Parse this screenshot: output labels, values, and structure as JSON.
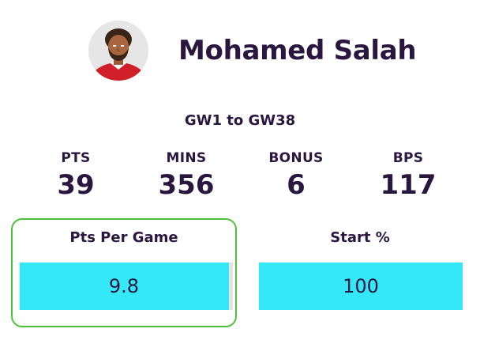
{
  "player": {
    "name": "Mohamed Salah",
    "avatar_icon": "player-avatar"
  },
  "range": "GW1 to GW38",
  "stats": [
    {
      "label": "PTS",
      "value": "39"
    },
    {
      "label": "MINS",
      "value": "356"
    },
    {
      "label": "BONUS",
      "value": "6"
    },
    {
      "label": "BPS",
      "value": "117"
    }
  ],
  "metrics": [
    {
      "label": "Pts Per Game",
      "value": "9.8",
      "fill_fraction": 0.98,
      "highlighted": true
    },
    {
      "label": "Start %",
      "value": "100",
      "fill_fraction": 1.0,
      "highlighted": false
    }
  ],
  "colors": {
    "text": "#2a1740",
    "bar_fill": "#35e8f7",
    "bar_track": "#e4e4e4",
    "highlight_border": "#4cc23a"
  }
}
